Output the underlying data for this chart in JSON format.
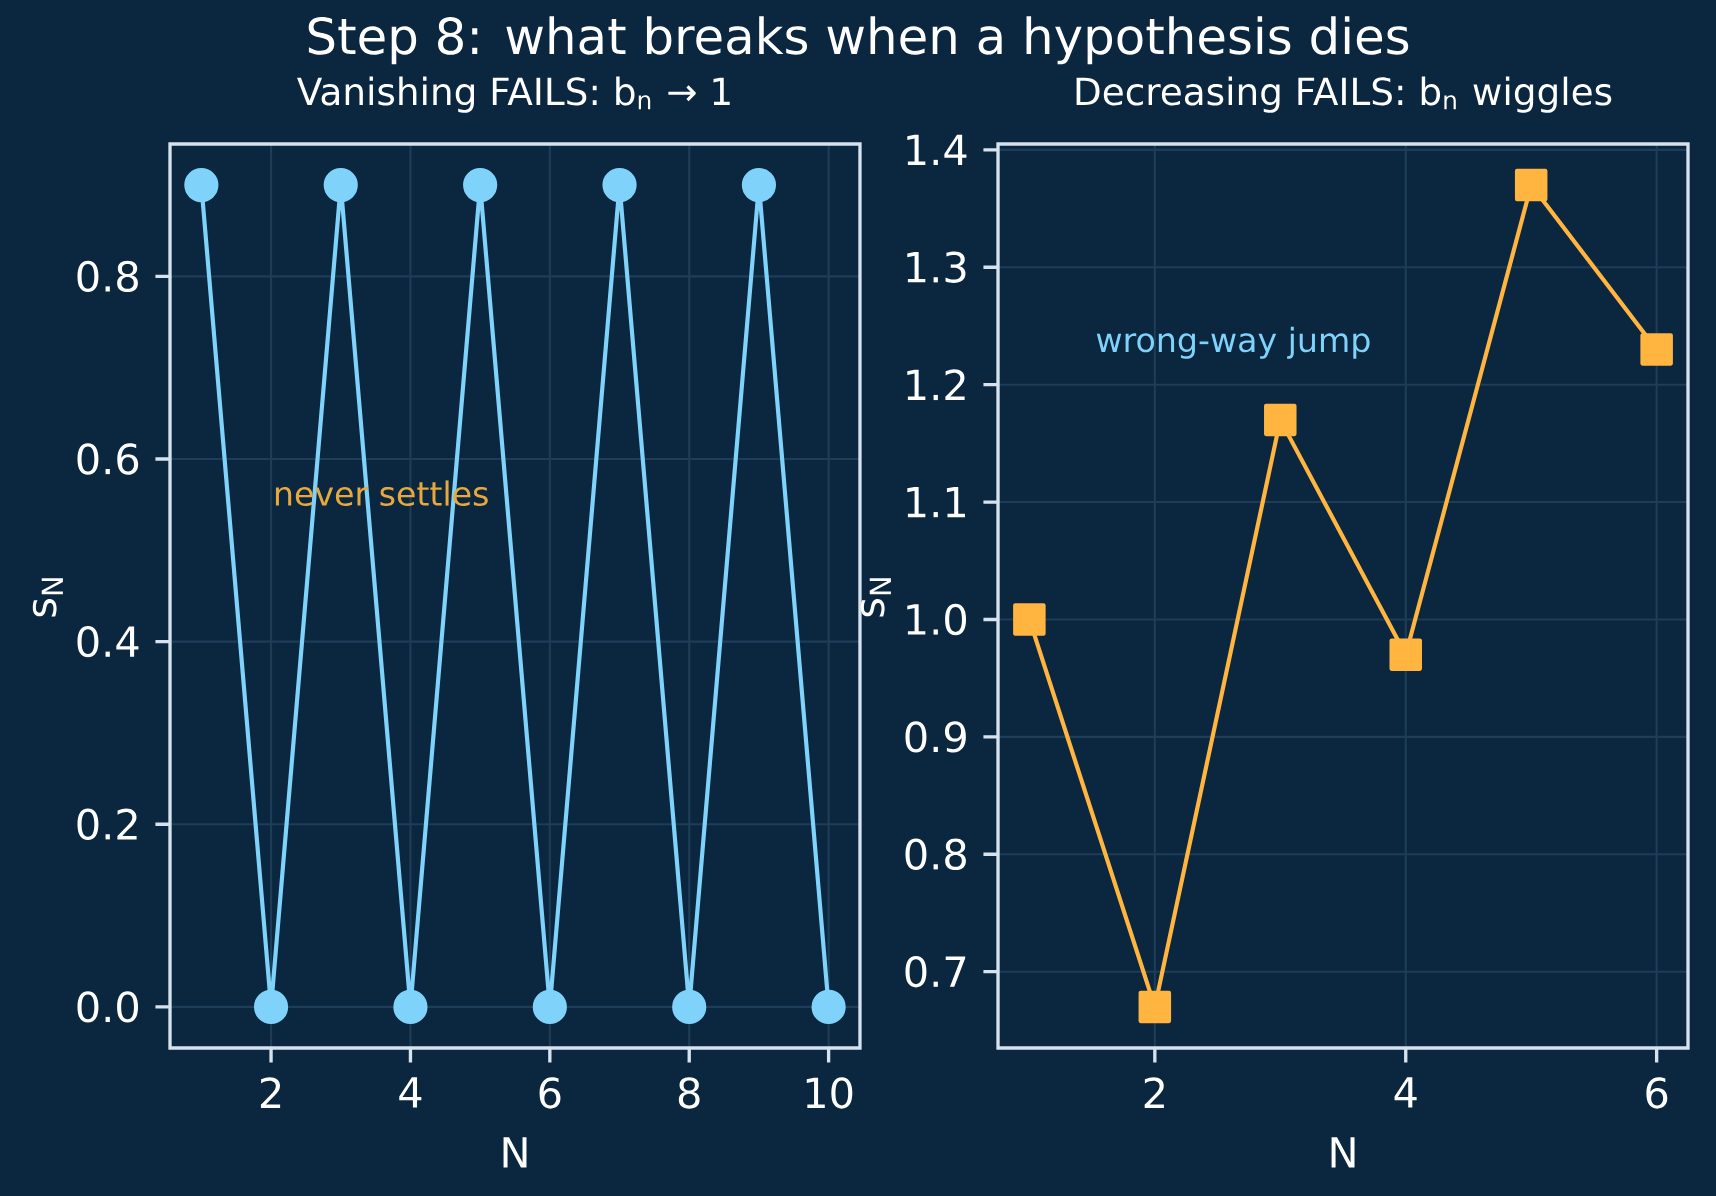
{
  "chart_data": [
    {
      "type": "line",
      "title": "Step 8: what breaks when a hypothesis dies",
      "subtitle": "Vanishing FAILS: b$_{n}$ → 1",
      "xlabel": "N",
      "ylabel": "s$_{N}$",
      "x": [
        1,
        2,
        3,
        4,
        5,
        6,
        7,
        8,
        9,
        10
      ],
      "series": [
        {
          "color": "#7fd3fb",
          "values": [
            0.9,
            0,
            0.9,
            0,
            0.9,
            0,
            0.9,
            0,
            0.9,
            0
          ]
        }
      ],
      "xlim": [
        0.55,
        10.45
      ],
      "ylim": [
        -0.045,
        0.945
      ],
      "xticks": [
        2,
        4,
        6,
        8,
        10
      ],
      "yticks": [
        {
          "value": 0,
          "label": "0.0"
        },
        0.2,
        0.4,
        0.6,
        0.8
      ],
      "annotations": [
        "never settles"
      ],
      "grid": true,
      "marker": "circle",
      "line_style": "solid"
    },
    {
      "type": "line",
      "subtitle": "Decreasing FAILS: b$_{n}$ wiggles",
      "xlabel": "N",
      "ylabel": "s$_{N}$",
      "x": [
        1,
        2,
        3,
        4,
        5,
        6
      ],
      "series": [
        {
          "color": "#ffb53f",
          "values": [
            1.0,
            0.67,
            1.17,
            0.97,
            1.37,
            1.23
          ]
        }
      ],
      "xlim": [
        0.75,
        6.25
      ],
      "ylim": [
        0.635,
        1.405
      ],
      "xticks": [
        2,
        4,
        6
      ],
      "yticks": [
        0.7,
        0.8,
        0.9,
        {
          "value": 1,
          "label": "1.0"
        },
        1.1,
        1.2,
        1.3,
        1.4
      ],
      "annotations": [
        "wrong-way jump"
      ],
      "grid": true,
      "marker": "square",
      "line_style": "solid"
    }
  ]
}
